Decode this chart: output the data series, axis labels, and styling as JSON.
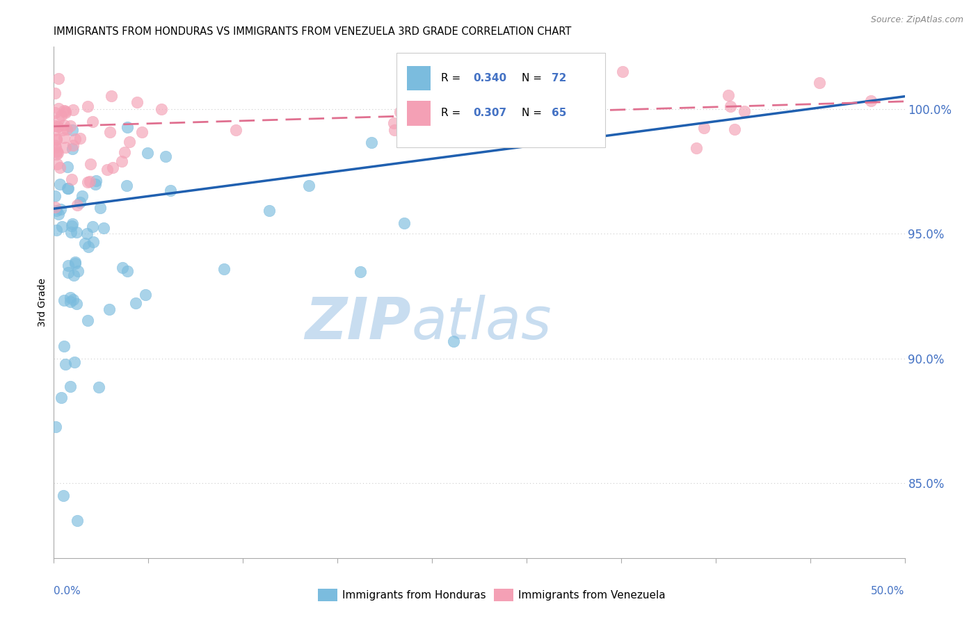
{
  "title": "IMMIGRANTS FROM HONDURAS VS IMMIGRANTS FROM VENEZUELA 3RD GRADE CORRELATION CHART",
  "source": "Source: ZipAtlas.com",
  "ylabel": "3rd Grade",
  "xlim": [
    0.0,
    50.0
  ],
  "ylim": [
    82.0,
    102.5
  ],
  "yticks": [
    85.0,
    90.0,
    95.0,
    100.0
  ],
  "ytick_labels": [
    "85.0%",
    "90.0%",
    "95.0%",
    "100.0%"
  ],
  "color_honduras": "#7bbcde",
  "color_venezuela": "#f4a0b5",
  "color_line_honduras": "#2060b0",
  "color_line_venezuela": "#e07090",
  "color_blue_text": "#4472c4",
  "background": "#ffffff",
  "hon_line_x0": 0.0,
  "hon_line_y0": 96.0,
  "hon_line_x1": 50.0,
  "hon_line_y1": 100.5,
  "ven_line_x0": 0.0,
  "ven_line_y0": 99.3,
  "ven_line_x1": 50.0,
  "ven_line_y1": 100.3
}
